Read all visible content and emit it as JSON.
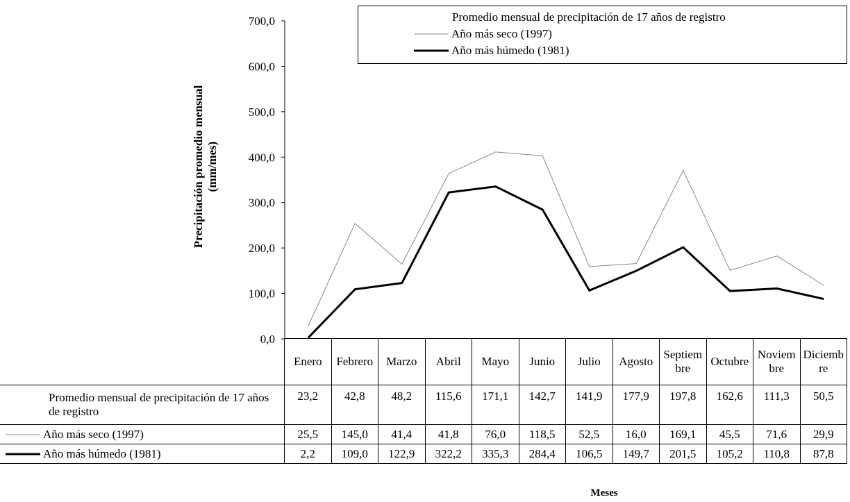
{
  "chart_data": {
    "type": "line",
    "stacked": true,
    "y_label": "Precipitación promedio mensual (mm/mes)",
    "x_label": "Meses",
    "categories": [
      "Enero",
      "Febrero",
      "Marzo",
      "Abril",
      "Mayo",
      "Junio",
      "Julio",
      "Agosto",
      "Septiembre",
      "Octubre",
      "Noviembre",
      "Diciembre"
    ],
    "series": [
      {
        "name": "Año más húmedo (1981)",
        "color": "#000000",
        "width": 3,
        "values": [
          2.2,
          109.0,
          122.9,
          322.2,
          335.3,
          284.4,
          106.5,
          149.7,
          201.5,
          105.2,
          110.8,
          87.8
        ],
        "value_labels": [
          "2,2",
          "109,0",
          "122,9",
          "322,2",
          "335,3",
          "284,4",
          "106,5",
          "149,7",
          "201,5",
          "105,2",
          "110,8",
          "87,8"
        ]
      },
      {
        "name": "Año más seco (1997)",
        "color": "#888888",
        "width": 1,
        "values": [
          25.5,
          145.0,
          41.4,
          41.8,
          76.0,
          118.5,
          52.5,
          16.0,
          169.1,
          45.5,
          71.6,
          29.9
        ],
        "value_labels": [
          "25,5",
          "145,0",
          "41,4",
          "41,8",
          "76,0",
          "118,5",
          "52,5",
          "16,0",
          "169,1",
          "45,5",
          "71,6",
          "29,9"
        ]
      },
      {
        "name": "Promedio mensual de precipitación de 17 años de registro",
        "color": "none",
        "width": 0,
        "values": [
          23.2,
          42.8,
          48.2,
          115.6,
          171.1,
          142.7,
          141.9,
          177.9,
          197.8,
          162.6,
          111.3,
          50.5
        ],
        "value_labels": [
          "23,2",
          "42,8",
          "48,2",
          "115,6",
          "171,1",
          "142,7",
          "141,9",
          "177,9",
          "197,8",
          "162,6",
          "111,3",
          "50,5"
        ]
      }
    ],
    "ylim": [
      0,
      700
    ],
    "yticks": [
      {
        "value": 0,
        "label": "0,0"
      },
      {
        "value": 100,
        "label": "100,0"
      },
      {
        "value": 200,
        "label": "200,0"
      },
      {
        "value": 300,
        "label": "300,0"
      },
      {
        "value": 400,
        "label": "400,0"
      },
      {
        "value": 500,
        "label": "500,0"
      },
      {
        "value": 600,
        "label": "600,0"
      },
      {
        "value": 700,
        "label": "700,0"
      }
    ],
    "grid": false
  }
}
